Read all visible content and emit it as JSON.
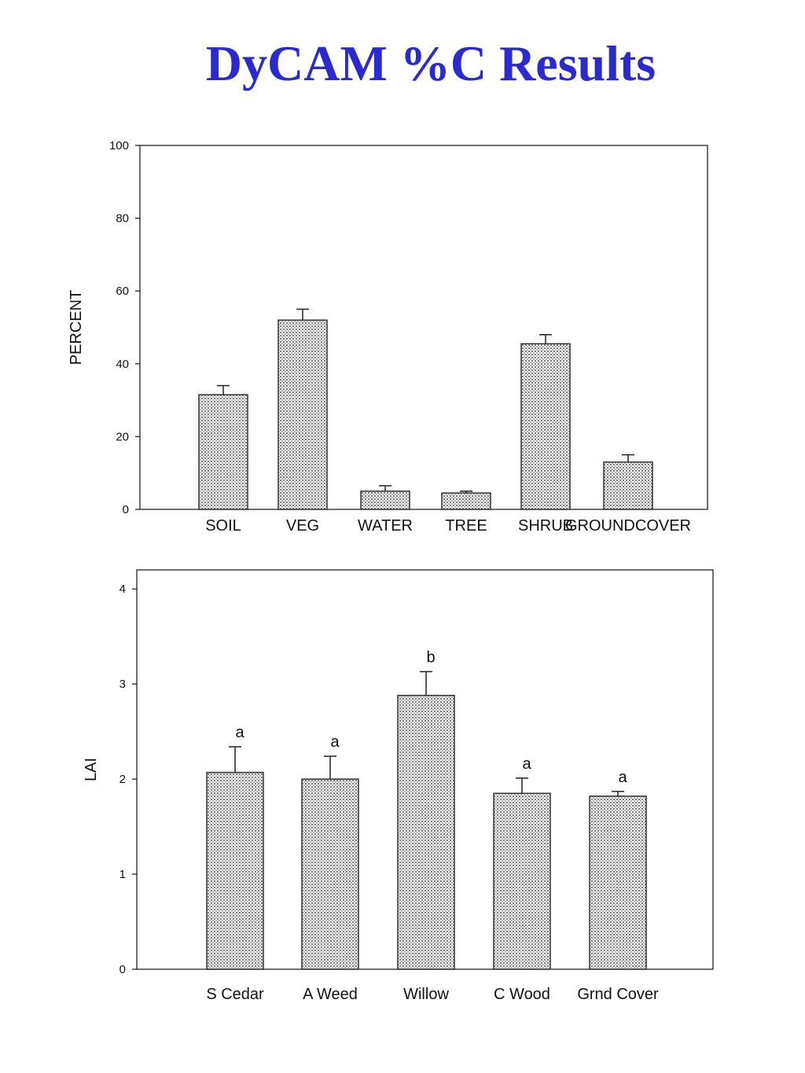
{
  "slide": {
    "title": "DyCAM %C Results"
  },
  "colors": {
    "title": "#2a2ad0",
    "bar_fill": "#c8c8c8",
    "bar_stroke": "#333333"
  },
  "chart_data": [
    {
      "type": "bar",
      "title": "",
      "xlabel": "",
      "ylabel": "PERCENT",
      "ylim": [
        0,
        100
      ],
      "yticks": [
        0,
        20,
        40,
        60,
        80,
        100
      ],
      "categories": [
        "SOIL",
        "VEG",
        "WATER",
        "TREE",
        "SHRUB",
        "GROUNDCOVER"
      ],
      "values": [
        31.5,
        52,
        5,
        4.5,
        45.5,
        13
      ],
      "errors": [
        2.5,
        3,
        1.5,
        0.5,
        2.5,
        2
      ],
      "grid": false,
      "legend": "none"
    },
    {
      "type": "bar",
      "title": "",
      "xlabel": "",
      "ylabel": "LAI",
      "ylim": [
        0,
        4.2
      ],
      "yticks": [
        0,
        1,
        2,
        3,
        4
      ],
      "categories": [
        "S Cedar",
        "A Weed",
        "Willow",
        "C Wood",
        "Grnd Cover"
      ],
      "values": [
        2.07,
        2.0,
        2.88,
        1.85,
        1.82
      ],
      "errors": [
        0.27,
        0.24,
        0.25,
        0.16,
        0.05
      ],
      "significance": [
        "a",
        "a",
        "b",
        "a",
        "a"
      ],
      "grid": false,
      "legend": "none"
    }
  ]
}
